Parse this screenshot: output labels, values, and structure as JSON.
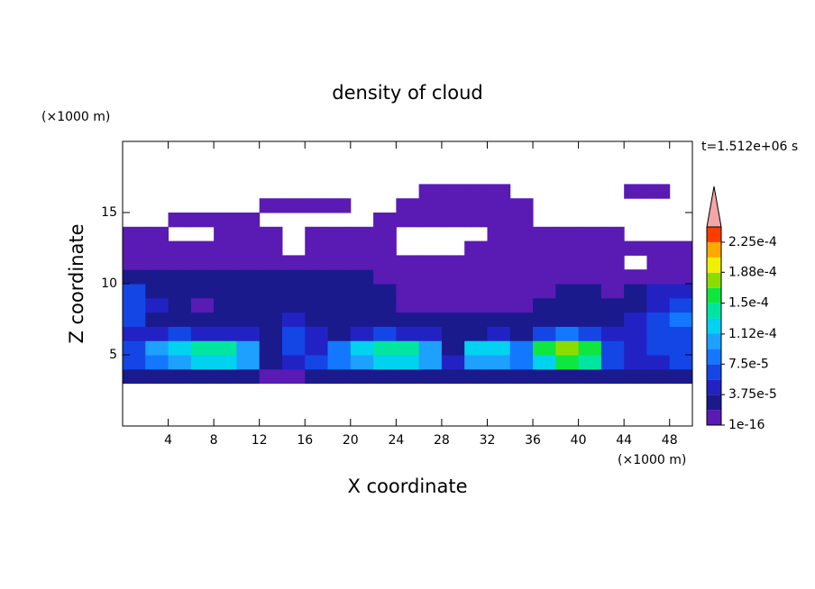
{
  "chart_data": {
    "type": "contour",
    "title": "density of cloud",
    "x_label": "X coordinate",
    "y_label": "Z coordinate",
    "x_unit_label": "(×1000 m)",
    "y_unit_label": "(×1000 m)",
    "annotation": "t=1.512e+06 s",
    "xlim": [
      0,
      50
    ],
    "ylim": [
      0,
      20
    ],
    "xticks": [
      4,
      8,
      12,
      16,
      20,
      24,
      28,
      32,
      36,
      40,
      44,
      48
    ],
    "yticks": [
      5,
      10,
      15
    ],
    "x": [
      1,
      3,
      5,
      7,
      9,
      11,
      13,
      15,
      17,
      19,
      21,
      23,
      25,
      27,
      29,
      31,
      33,
      35,
      37,
      39,
      41,
      43,
      45,
      47,
      49
    ],
    "y": [
      3.5,
      4.5,
      5.5,
      6.5,
      7.5,
      8.5,
      9.5,
      10.5,
      11.5,
      12.5,
      13.5,
      14.5,
      15.5,
      16.5
    ],
    "values": [
      [
        3e-05,
        3e-05,
        3e-05,
        3e-05,
        3e-05,
        3e-05,
        5e-06,
        5e-06,
        3e-05,
        3e-05,
        3e-05,
        3e-05,
        3e-05,
        3e-05,
        3e-05,
        3e-05,
        3e-05,
        3e-05,
        3e-05,
        3e-05,
        3e-05,
        3e-05,
        3e-05,
        3e-05,
        3e-05
      ],
      [
        6e-05,
        9e-05,
        0.00011,
        0.00012,
        0.00012,
        0.00011,
        3e-05,
        5e-05,
        6e-05,
        9e-05,
        0.00011,
        0.00012,
        0.00012,
        0.0001,
        4e-05,
        0.0001,
        0.00011,
        8e-05,
        0.00013,
        0.00015,
        0.00014,
        6e-05,
        4e-05,
        5e-05,
        6e-05
      ],
      [
        7e-05,
        0.0001,
        0.00012,
        0.00014,
        0.000135,
        0.00011,
        2e-05,
        6e-05,
        5e-05,
        8e-05,
        0.00012,
        0.000145,
        0.000135,
        0.0001,
        3e-05,
        0.00012,
        0.00013,
        9e-05,
        0.00015,
        0.00018,
        0.00016,
        7e-05,
        5e-05,
        6e-05,
        7e-05
      ],
      [
        5e-05,
        4e-05,
        6e-05,
        5e-05,
        4e-05,
        4e-05,
        3e-05,
        6e-05,
        4e-05,
        3e-05,
        5e-05,
        6e-05,
        5e-05,
        4e-05,
        3e-05,
        3e-05,
        4e-05,
        3e-05,
        6e-05,
        8e-05,
        6e-05,
        4e-05,
        5e-05,
        6e-05,
        7e-05
      ],
      [
        6e-05,
        3e-05,
        2e-05,
        2e-05,
        2e-05,
        2e-05,
        2e-05,
        4e-05,
        2e-05,
        2e-05,
        2e-05,
        2e-05,
        3e-05,
        2e-05,
        2e-05,
        2e-05,
        2e-05,
        2e-05,
        3e-05,
        3e-05,
        2e-05,
        2e-05,
        4e-05,
        6e-05,
        8e-05
      ],
      [
        7e-05,
        4e-05,
        2e-05,
        1e-05,
        2e-05,
        2e-05,
        2e-05,
        2e-05,
        2e-05,
        2e-05,
        2e-05,
        2e-05,
        1e-05,
        1e-05,
        1e-05,
        1e-05,
        1e-05,
        1e-05,
        2e-05,
        2e-05,
        2e-05,
        2e-05,
        3e-05,
        5e-05,
        7e-05
      ],
      [
        6e-05,
        3e-05,
        2e-05,
        2e-05,
        2e-05,
        2e-05,
        2e-05,
        2e-05,
        2e-05,
        2e-05,
        2e-05,
        2e-05,
        1e-05,
        1e-05,
        1e-05,
        1e-05,
        1e-05,
        1e-05,
        1e-05,
        2e-05,
        2e-05,
        1e-05,
        2e-05,
        4e-05,
        5e-05
      ],
      [
        2e-05,
        2e-05,
        2e-05,
        2e-05,
        2e-05,
        2e-05,
        2e-05,
        2e-05,
        2e-05,
        2e-05,
        2e-05,
        1e-05,
        5e-06,
        5e-06,
        5e-06,
        5e-06,
        5e-06,
        5e-06,
        5e-06,
        5e-06,
        5e-06,
        5e-06,
        5e-06,
        5e-06,
        5e-06
      ],
      [
        5e-06,
        5e-06,
        5e-06,
        5e-06,
        5e-06,
        5e-06,
        5e-06,
        5e-06,
        5e-06,
        5e-06,
        5e-06,
        5e-06,
        5e-06,
        5e-06,
        5e-06,
        5e-06,
        5e-06,
        5e-06,
        5e-06,
        5e-06,
        5e-06,
        5e-06,
        null,
        5e-06,
        5e-06
      ],
      [
        5e-06,
        5e-06,
        5e-06,
        5e-06,
        5e-06,
        5e-06,
        5e-06,
        null,
        5e-06,
        5e-06,
        5e-06,
        5e-06,
        null,
        null,
        null,
        5e-06,
        5e-06,
        5e-06,
        5e-06,
        5e-06,
        5e-06,
        5e-06,
        5e-06,
        5e-06,
        5e-06
      ],
      [
        5e-06,
        5e-06,
        null,
        null,
        5e-06,
        5e-06,
        5e-06,
        null,
        5e-06,
        5e-06,
        5e-06,
        5e-06,
        null,
        null,
        null,
        null,
        5e-06,
        5e-06,
        5e-06,
        5e-06,
        5e-06,
        5e-06,
        null,
        null,
        null
      ],
      [
        null,
        null,
        5e-06,
        5e-06,
        5e-06,
        5e-06,
        null,
        null,
        null,
        null,
        null,
        5e-06,
        5e-06,
        5e-06,
        5e-06,
        5e-06,
        5e-06,
        5e-06,
        null,
        null,
        null,
        null,
        null,
        null,
        null
      ],
      [
        null,
        null,
        null,
        null,
        null,
        null,
        5e-06,
        5e-06,
        5e-06,
        5e-06,
        null,
        null,
        5e-06,
        5e-06,
        5e-06,
        5e-06,
        5e-06,
        5e-06,
        null,
        null,
        null,
        null,
        null,
        null,
        null
      ],
      [
        null,
        null,
        null,
        null,
        null,
        null,
        null,
        null,
        null,
        null,
        null,
        null,
        null,
        5e-06,
        5e-06,
        5e-06,
        5e-06,
        null,
        null,
        null,
        null,
        null,
        5e-06,
        5e-06,
        null
      ]
    ],
    "colorbar": {
      "levels": [
        1e-16,
        1.875e-05,
        3.75e-05,
        5.625e-05,
        7.5e-05,
        9.375e-05,
        0.0001125,
        0.00013125,
        0.00015,
        0.00016875,
        0.0001875,
        0.00020625,
        0.000225,
        0.00024375
      ],
      "colors": [
        "#5a1ab4",
        "#1a1a8c",
        "#2222c4",
        "#1446e6",
        "#1478ff",
        "#1ea0ff",
        "#00d2f0",
        "#00e6a0",
        "#10e640",
        "#8cdc00",
        "#f0f000",
        "#ffa800",
        "#ff3c00"
      ],
      "extend_color": "#f4a6a6",
      "ticks": [
        {
          "value": 1e-16,
          "label": "1e-16"
        },
        {
          "value": 3.75e-05,
          "label": "3.75e-5"
        },
        {
          "value": 7.5e-05,
          "label": "7.5e-5"
        },
        {
          "value": 0.000112,
          "label": "1.12e-4"
        },
        {
          "value": 0.00015,
          "label": "1.5e-4"
        },
        {
          "value": 0.000188,
          "label": "1.88e-4"
        },
        {
          "value": 0.000225,
          "label": "2.25e-4"
        }
      ]
    }
  }
}
